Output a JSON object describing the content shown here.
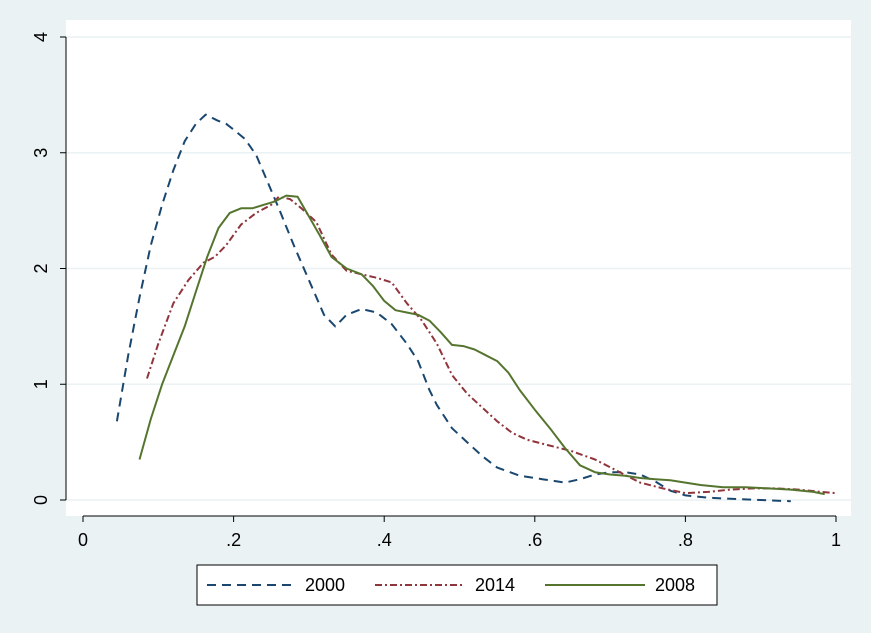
{
  "chart_data": {
    "type": "line",
    "title": "",
    "xlabel": "",
    "ylabel": "",
    "xlim": [
      0,
      1
    ],
    "ylim": [
      0,
      4
    ],
    "x_ticks": [
      0,
      0.2,
      0.4,
      0.6,
      0.8,
      1
    ],
    "x_tick_labels": [
      "0",
      ".2",
      ".4",
      ".6",
      ".8",
      "1"
    ],
    "y_ticks": [
      0,
      1,
      2,
      3,
      4
    ],
    "y_tick_labels": [
      "0",
      "1",
      "2",
      "3",
      "4"
    ],
    "grid": "horizontal",
    "legend_position": "bottom",
    "series": [
      {
        "name": "2000",
        "color": "#1a476f",
        "dash": "dashed",
        "points": [
          [
            0.045,
            0.68
          ],
          [
            0.06,
            1.25
          ],
          [
            0.075,
            1.75
          ],
          [
            0.09,
            2.2
          ],
          [
            0.105,
            2.55
          ],
          [
            0.12,
            2.85
          ],
          [
            0.135,
            3.1
          ],
          [
            0.15,
            3.25
          ],
          [
            0.163,
            3.33
          ],
          [
            0.178,
            3.28
          ],
          [
            0.19,
            3.25
          ],
          [
            0.2,
            3.2
          ],
          [
            0.215,
            3.12
          ],
          [
            0.23,
            2.98
          ],
          [
            0.245,
            2.75
          ],
          [
            0.26,
            2.52
          ],
          [
            0.28,
            2.2
          ],
          [
            0.3,
            1.9
          ],
          [
            0.32,
            1.6
          ],
          [
            0.335,
            1.5
          ],
          [
            0.35,
            1.6
          ],
          [
            0.37,
            1.65
          ],
          [
            0.39,
            1.62
          ],
          [
            0.41,
            1.52
          ],
          [
            0.43,
            1.35
          ],
          [
            0.445,
            1.2
          ],
          [
            0.46,
            0.95
          ],
          [
            0.47,
            0.82
          ],
          [
            0.49,
            0.62
          ],
          [
            0.51,
            0.5
          ],
          [
            0.53,
            0.38
          ],
          [
            0.55,
            0.28
          ],
          [
            0.58,
            0.21
          ],
          [
            0.61,
            0.18
          ],
          [
            0.64,
            0.15
          ],
          [
            0.66,
            0.18
          ],
          [
            0.68,
            0.22
          ],
          [
            0.7,
            0.24
          ],
          [
            0.72,
            0.24
          ],
          [
            0.74,
            0.22
          ],
          [
            0.76,
            0.16
          ],
          [
            0.78,
            0.08
          ],
          [
            0.8,
            0.04
          ],
          [
            0.83,
            0.02
          ],
          [
            0.86,
            0.01
          ],
          [
            0.9,
            0.0
          ],
          [
            0.94,
            -0.01
          ]
        ]
      },
      {
        "name": "2014",
        "color": "#90353b",
        "dash": "dashdot",
        "points": [
          [
            0.085,
            1.05
          ],
          [
            0.1,
            1.35
          ],
          [
            0.12,
            1.7
          ],
          [
            0.14,
            1.9
          ],
          [
            0.16,
            2.05
          ],
          [
            0.175,
            2.1
          ],
          [
            0.19,
            2.2
          ],
          [
            0.21,
            2.38
          ],
          [
            0.23,
            2.48
          ],
          [
            0.25,
            2.55
          ],
          [
            0.26,
            2.62
          ],
          [
            0.275,
            2.6
          ],
          [
            0.29,
            2.52
          ],
          [
            0.31,
            2.4
          ],
          [
            0.33,
            2.12
          ],
          [
            0.35,
            1.98
          ],
          [
            0.37,
            1.95
          ],
          [
            0.39,
            1.92
          ],
          [
            0.41,
            1.88
          ],
          [
            0.43,
            1.7
          ],
          [
            0.45,
            1.55
          ],
          [
            0.47,
            1.35
          ],
          [
            0.49,
            1.08
          ],
          [
            0.51,
            0.92
          ],
          [
            0.53,
            0.8
          ],
          [
            0.55,
            0.68
          ],
          [
            0.57,
            0.58
          ],
          [
            0.59,
            0.52
          ],
          [
            0.62,
            0.47
          ],
          [
            0.65,
            0.42
          ],
          [
            0.68,
            0.35
          ],
          [
            0.71,
            0.25
          ],
          [
            0.74,
            0.15
          ],
          [
            0.77,
            0.1
          ],
          [
            0.8,
            0.06
          ],
          [
            0.83,
            0.07
          ],
          [
            0.86,
            0.09
          ],
          [
            0.89,
            0.1
          ],
          [
            0.92,
            0.1
          ],
          [
            0.95,
            0.09
          ],
          [
            0.98,
            0.07
          ],
          [
            1.0,
            0.06
          ]
        ]
      },
      {
        "name": "2008",
        "color": "#55752f",
        "dash": "solid",
        "points": [
          [
            0.075,
            0.35
          ],
          [
            0.09,
            0.7
          ],
          [
            0.105,
            1.0
          ],
          [
            0.12,
            1.25
          ],
          [
            0.135,
            1.5
          ],
          [
            0.15,
            1.8
          ],
          [
            0.165,
            2.1
          ],
          [
            0.18,
            2.35
          ],
          [
            0.195,
            2.48
          ],
          [
            0.21,
            2.52
          ],
          [
            0.225,
            2.52
          ],
          [
            0.24,
            2.55
          ],
          [
            0.255,
            2.58
          ],
          [
            0.27,
            2.63
          ],
          [
            0.285,
            2.62
          ],
          [
            0.3,
            2.45
          ],
          [
            0.315,
            2.28
          ],
          [
            0.33,
            2.1
          ],
          [
            0.35,
            2.0
          ],
          [
            0.37,
            1.95
          ],
          [
            0.385,
            1.85
          ],
          [
            0.4,
            1.72
          ],
          [
            0.415,
            1.64
          ],
          [
            0.43,
            1.62
          ],
          [
            0.445,
            1.6
          ],
          [
            0.46,
            1.55
          ],
          [
            0.475,
            1.45
          ],
          [
            0.49,
            1.34
          ],
          [
            0.505,
            1.33
          ],
          [
            0.52,
            1.3
          ],
          [
            0.535,
            1.25
          ],
          [
            0.55,
            1.2
          ],
          [
            0.565,
            1.1
          ],
          [
            0.58,
            0.95
          ],
          [
            0.6,
            0.78
          ],
          [
            0.62,
            0.62
          ],
          [
            0.64,
            0.45
          ],
          [
            0.66,
            0.3
          ],
          [
            0.68,
            0.24
          ],
          [
            0.7,
            0.22
          ],
          [
            0.72,
            0.21
          ],
          [
            0.74,
            0.19
          ],
          [
            0.76,
            0.18
          ],
          [
            0.78,
            0.17
          ],
          [
            0.8,
            0.15
          ],
          [
            0.82,
            0.13
          ],
          [
            0.85,
            0.11
          ],
          [
            0.88,
            0.11
          ],
          [
            0.91,
            0.1
          ],
          [
            0.94,
            0.09
          ],
          [
            0.97,
            0.07
          ],
          [
            0.985,
            0.05
          ]
        ]
      }
    ]
  }
}
